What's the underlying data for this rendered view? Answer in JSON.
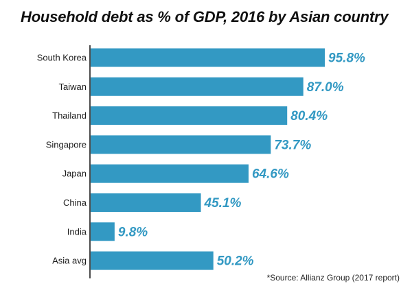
{
  "chart_data": {
    "type": "bar",
    "orientation": "horizontal",
    "title": "Household debt as % of GDP, 2016 by Asian country",
    "categories": [
      "South Korea",
      "Taiwan",
      "Thailand",
      "Singapore",
      "Japan",
      "China",
      "India",
      "Asia avg"
    ],
    "values": [
      95.8,
      87.0,
      80.4,
      73.7,
      64.6,
      45.1,
      9.8,
      50.2
    ],
    "value_labels": [
      "95.8%",
      "87.0%",
      "80.4%",
      "73.7%",
      "64.6%",
      "45.1%",
      "9.8%",
      "50.2%"
    ],
    "xlabel": "",
    "ylabel": "",
    "xlim": [
      0,
      100
    ],
    "grid": false,
    "legend": "none",
    "bar_color": "#3399c3",
    "label_color": "#3399c3",
    "source": "*Source: Allianz Group (2017 report)"
  }
}
